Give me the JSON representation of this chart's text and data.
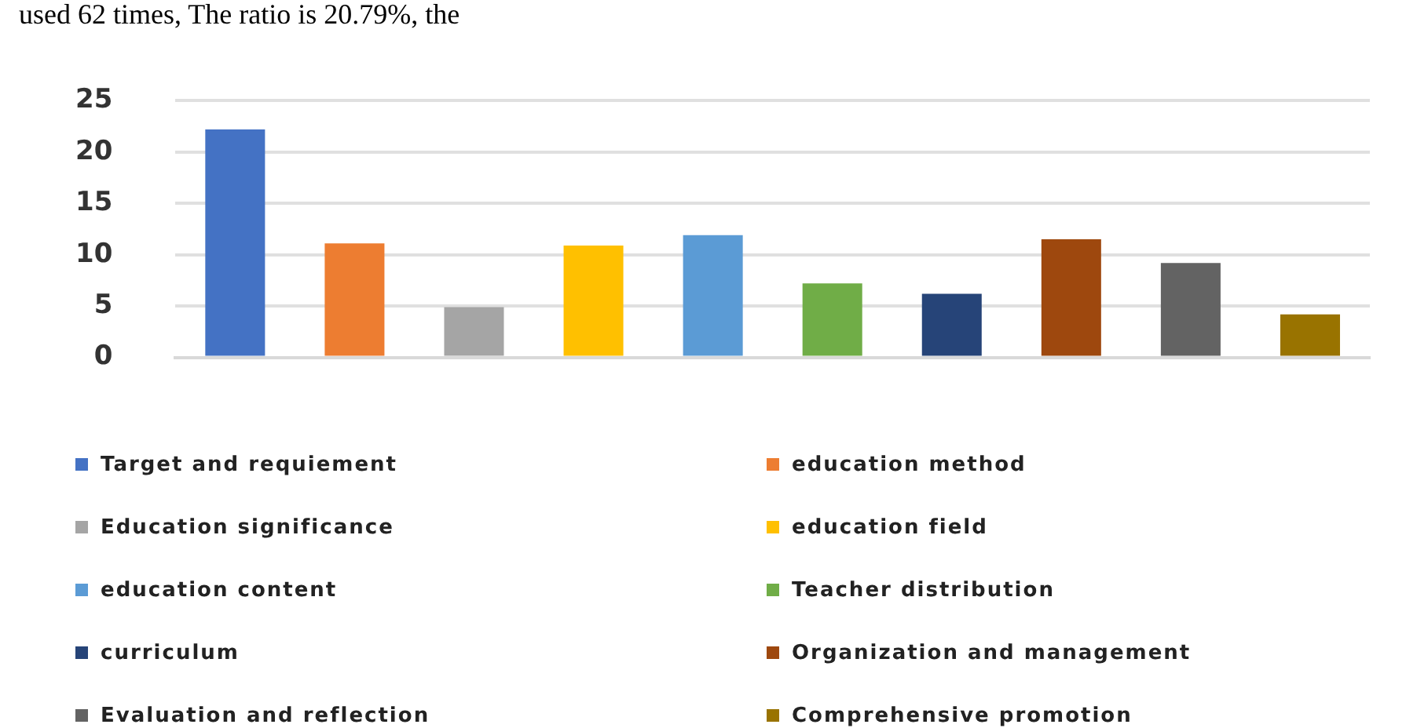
{
  "chart_data": {
    "type": "bar",
    "annotations": [
      "used 62 times, The ratio is 20.79%, the"
    ],
    "categories": [
      null,
      null,
      null,
      null,
      null,
      null,
      null,
      null,
      null,
      null
    ],
    "series": [
      {
        "name": "Target and requiement",
        "color": "#4472c4",
        "values": [
          22.2,
          null,
          null,
          null,
          null,
          null,
          null,
          null,
          null,
          null
        ]
      },
      {
        "name": "education method",
        "color": "#ed7d31",
        "values": [
          null,
          11.1,
          null,
          null,
          null,
          null,
          null,
          null,
          null,
          null
        ]
      },
      {
        "name": "Education significance",
        "color": "#a5a5a5",
        "values": [
          null,
          null,
          4.9,
          null,
          null,
          null,
          null,
          null,
          null,
          null
        ]
      },
      {
        "name": "education field",
        "color": "#ffc000",
        "values": [
          null,
          null,
          null,
          10.9,
          null,
          null,
          null,
          null,
          null,
          null
        ]
      },
      {
        "name": "education content",
        "color": "#5b9bd5",
        "values": [
          null,
          null,
          null,
          null,
          11.9,
          null,
          null,
          null,
          null,
          null
        ]
      },
      {
        "name": "Teacher distribution",
        "color": "#70ad47",
        "values": [
          null,
          null,
          null,
          null,
          null,
          7.2,
          null,
          null,
          null,
          null
        ]
      },
      {
        "name": "curriculum",
        "color": "#264478",
        "values": [
          null,
          null,
          null,
          null,
          null,
          null,
          6.2,
          null,
          null,
          null
        ]
      },
      {
        "name": "Organization and management",
        "color": "#9e480e",
        "values": [
          null,
          null,
          null,
          null,
          null,
          null,
          null,
          11.5,
          null,
          null
        ]
      },
      {
        "name": "Evaluation and reflection",
        "color": "#636363",
        "values": [
          null,
          null,
          null,
          null,
          null,
          null,
          null,
          null,
          9.2,
          null
        ]
      },
      {
        "name": "Comprehensive promotion",
        "color": "#997300",
        "values": [
          null,
          null,
          null,
          null,
          null,
          null,
          null,
          null,
          null,
          4.2
        ]
      }
    ],
    "ylim": [
      0,
      25
    ],
    "yticks": [
      0,
      5,
      10,
      15,
      20,
      25
    ],
    "grid": "y",
    "legend": "bottom"
  }
}
